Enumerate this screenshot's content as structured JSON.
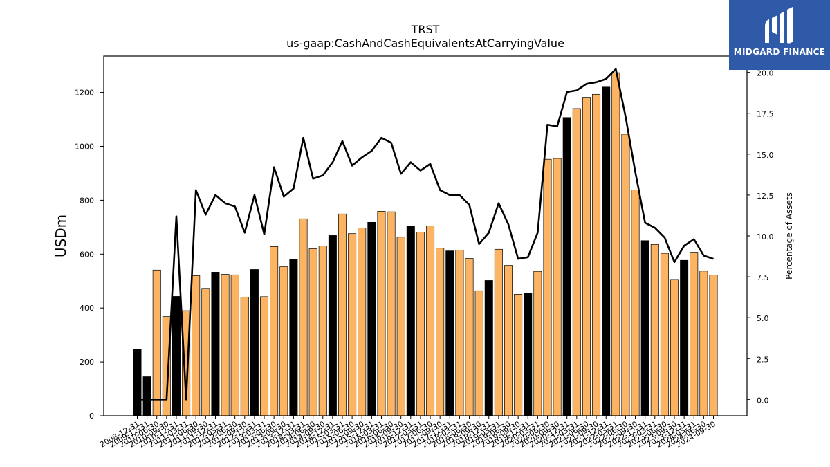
{
  "chart_data": {
    "type": "bar",
    "title": "TRST",
    "subtitle": "us-gaap:CashAndCashEquivalentsAtCarryingValue",
    "ylabel": "USDm",
    "y2label": "Percentage of Assets",
    "ylim": [
      0,
      1335
    ],
    "y2lim": [
      -1.0,
      21.0
    ],
    "yticks": [
      0,
      200,
      400,
      600,
      800,
      1000,
      1200
    ],
    "y2ticks": [
      0.0,
      2.5,
      5.0,
      7.5,
      10.0,
      12.5,
      15.0,
      17.5,
      20.0
    ],
    "colors": {
      "q4_bar": "#000000",
      "other_bar": "#fdb462",
      "line": "#000000"
    },
    "categories": [
      "2008-12-31",
      "2009-12-31",
      "2010-06-30",
      "2010-09-30",
      "2010-12-31",
      "2011-03-31",
      "2011-06-30",
      "2011-09-30",
      "2011-12-31",
      "2012-03-31",
      "2012-06-30",
      "2012-09-30",
      "2012-12-31",
      "2013-03-31",
      "2013-06-30",
      "2013-09-30",
      "2013-12-31",
      "2014-03-31",
      "2014-06-30",
      "2014-09-30",
      "2014-12-31",
      "2015-03-31",
      "2015-06-30",
      "2015-09-30",
      "2015-12-31",
      "2016-03-31",
      "2016-06-30",
      "2016-09-30",
      "2016-12-31",
      "2017-03-31",
      "2017-06-30",
      "2017-09-30",
      "2017-12-31",
      "2018-03-31",
      "2018-06-30",
      "2018-09-30",
      "2018-12-31",
      "2019-03-31",
      "2019-06-30",
      "2019-09-30",
      "2019-12-31",
      "2020-03-31",
      "2020-06-30",
      "2020-09-30",
      "2020-12-31",
      "2021-03-31",
      "2021-06-30",
      "2021-09-30",
      "2021-12-31",
      "2022-03-31",
      "2022-06-30",
      "2022-09-30",
      "2022-12-31",
      "2023-03-31",
      "2023-06-30",
      "2023-09-30",
      "2023-12-31",
      "2024-03-31",
      "2024-06-30",
      "2024-09-30"
    ],
    "series": [
      {
        "name": "USDm",
        "type": "bar",
        "values": [
          247,
          145,
          541,
          368,
          443,
          390,
          520,
          473,
          533,
          525,
          523,
          440,
          543,
          442,
          628,
          553,
          581,
          731,
          620,
          630,
          669,
          749,
          676,
          697,
          718,
          759,
          757,
          663,
          705,
          682,
          705,
          622,
          612,
          615,
          584,
          464,
          502,
          618,
          558,
          451,
          456,
          536,
          952,
          955,
          1107,
          1140,
          1182,
          1193,
          1220,
          1273,
          1045,
          838,
          650,
          636,
          603,
          506,
          577,
          607,
          537,
          522
        ]
      },
      {
        "name": "Percentage of Assets",
        "type": "line",
        "values": [
          0.0,
          0.0,
          0.0,
          0.0,
          11.2,
          0.0,
          12.8,
          11.3,
          12.5,
          12.0,
          11.8,
          10.2,
          12.5,
          10.1,
          14.2,
          12.4,
          12.9,
          16.0,
          13.5,
          13.7,
          14.5,
          15.8,
          14.3,
          14.8,
          15.2,
          16.0,
          15.7,
          13.8,
          14.5,
          14.0,
          14.4,
          12.8,
          12.5,
          12.5,
          11.9,
          9.5,
          10.2,
          12.0,
          10.7,
          8.6,
          8.7,
          10.2,
          16.8,
          16.7,
          18.8,
          18.9,
          19.3,
          19.4,
          19.6,
          20.2,
          17.3,
          13.9,
          10.8,
          10.5,
          9.9,
          8.4,
          9.4,
          9.8,
          8.8,
          8.6
        ]
      }
    ],
    "bar_is_q4": [
      1,
      1,
      0,
      0,
      1,
      0,
      0,
      0,
      1,
      0,
      0,
      0,
      1,
      0,
      0,
      0,
      1,
      0,
      0,
      0,
      1,
      0,
      0,
      0,
      1,
      0,
      0,
      0,
      1,
      0,
      0,
      0,
      1,
      0,
      0,
      0,
      1,
      0,
      0,
      0,
      1,
      0,
      0,
      0,
      1,
      0,
      0,
      0,
      1,
      0,
      0,
      0,
      1,
      0,
      0,
      0,
      1,
      0,
      0,
      0
    ]
  },
  "logo": {
    "name": "midgard-logo-icon",
    "text": "MIDGARD FINANCE"
  }
}
